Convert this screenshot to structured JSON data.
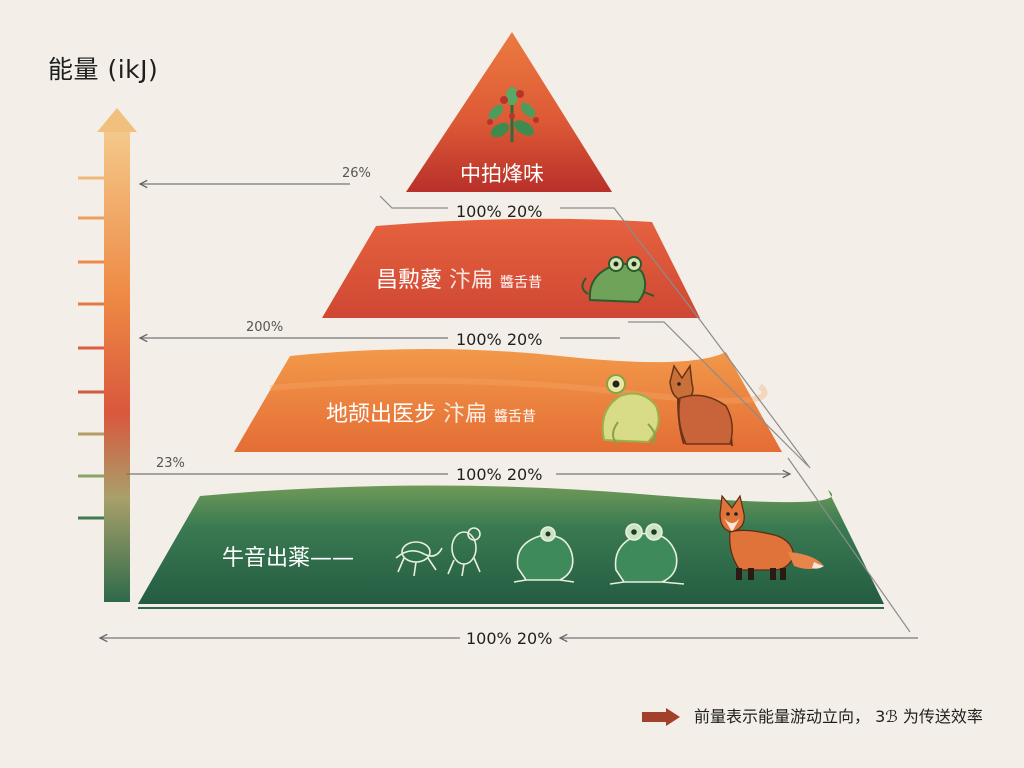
{
  "y_axis_title": "能量 (ikJ)",
  "levels": [
    {
      "label": "中拍烽味",
      "suffix": ""
    },
    {
      "label": "昌勲薆",
      "suffix": "汴扁",
      "note": "醬舌昔"
    },
    {
      "label": "地颉出医步",
      "suffix": "汴扁",
      "note": "醬舌昔"
    },
    {
      "label": "牛音出薬——",
      "suffix": "",
      "note": ""
    }
  ],
  "side_percents": [
    "26%",
    "200%",
    "23%"
  ],
  "efficiency_labels": [
    "100% 20%",
    "100% 20%",
    "100% 20%",
    "100% 20%"
  ],
  "legend": {
    "text": "前量表示能量游动立向，  3ℬ 为传送效率"
  },
  "colors": {
    "top": "#c84128",
    "second": "#d9533a",
    "third": "#e8823f",
    "bottom": "#2d6b4b",
    "legend_arrow": "#a3402b"
  },
  "icons": [
    "plant-icon",
    "frog-icon",
    "frog-icon",
    "fox-icon",
    "insect-icon",
    "frog-icon",
    "frog-icon",
    "fox-icon"
  ]
}
